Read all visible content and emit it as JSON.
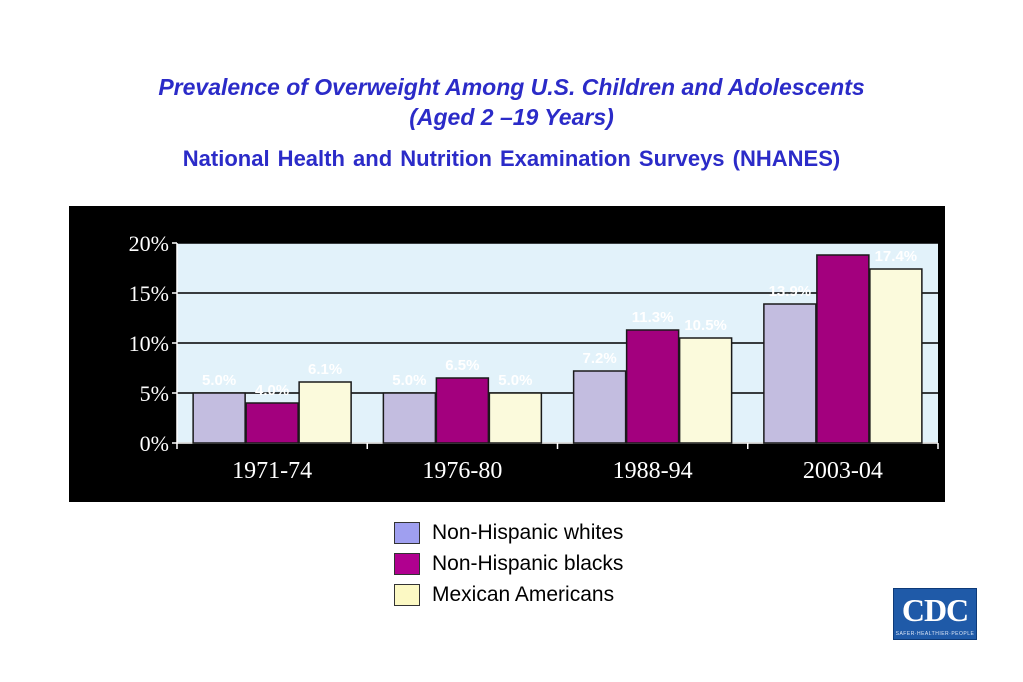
{
  "title": {
    "line1": "Prevalence of Overweight Among U.S. Children and Adolescents",
    "line2": "(Aged 2 –19 Years)",
    "subtitle": "National Health and Nutrition Examination Surveys (NHANES)"
  },
  "chart_data": {
    "type": "bar",
    "categories": [
      "1971-74",
      "1976-80",
      "1988-94",
      "2003-04"
    ],
    "series": [
      {
        "name": "Non-Hispanic whites",
        "values": [
          5.0,
          5.0,
          7.2,
          13.9
        ],
        "labels": [
          "5.0%",
          "5.0%",
          "7.2%",
          "13.9%"
        ],
        "color": "#c3bde0"
      },
      {
        "name": "Non-Hispanic blacks",
        "values": [
          4.0,
          6.5,
          11.3,
          18.8
        ],
        "labels": [
          "4.0%",
          "6.5%",
          "11.3%",
          ""
        ],
        "color": "#a3007e"
      },
      {
        "name": "Mexican Americans",
        "values": [
          6.1,
          5.0,
          10.5,
          17.4
        ],
        "labels": [
          "6.1%",
          "5.0%",
          "10.5%",
          "17.4%"
        ],
        "color": "#fbfadc"
      }
    ],
    "yticks": [
      "0%",
      "5%",
      "10%",
      "15%",
      "20%"
    ],
    "ylim": [
      0,
      20
    ],
    "grid": true,
    "legend": "bottom-center",
    "colors": {
      "frame": "#000000",
      "plot_bg": "#e2f2fa",
      "gridline": "#000000"
    }
  },
  "logo": {
    "text": "CDC",
    "tagline": "SAFER·HEALTHIER·PEOPLE"
  }
}
